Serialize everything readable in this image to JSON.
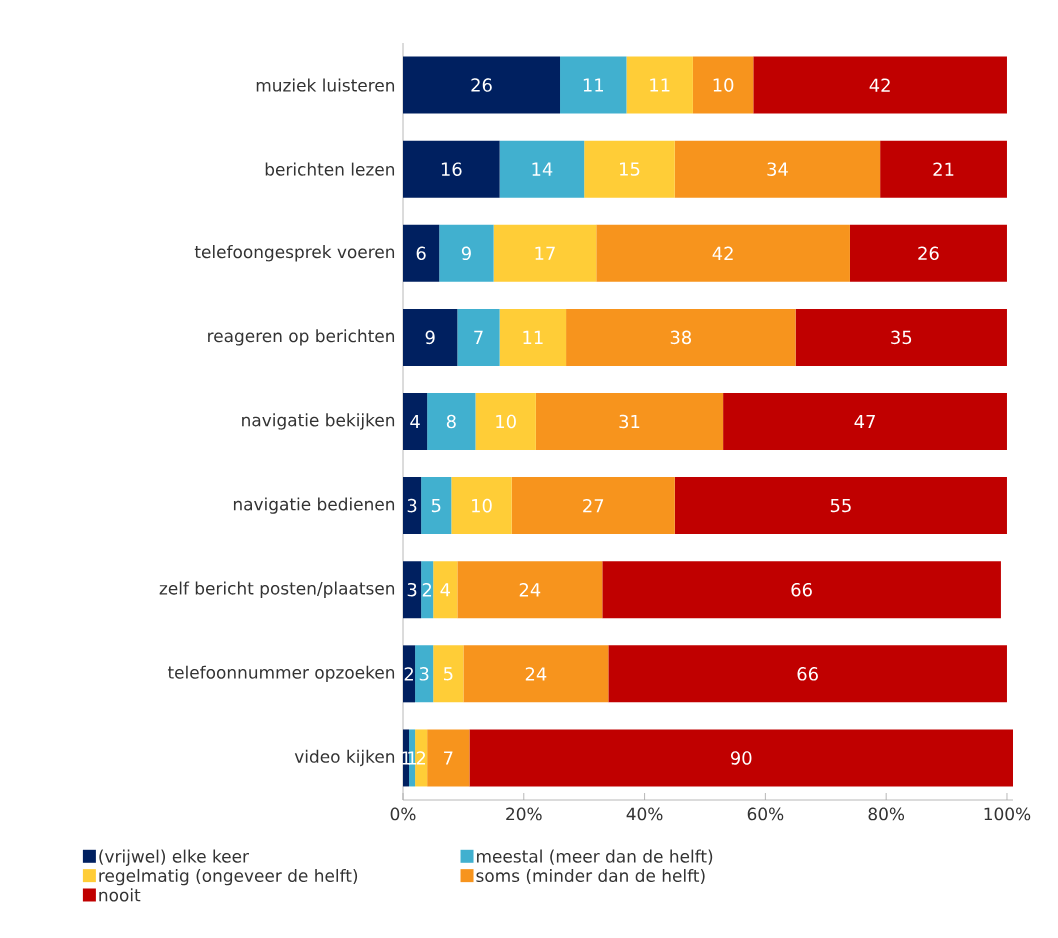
{
  "chart_data": {
    "type": "bar",
    "orientation": "horizontal",
    "stacked": true,
    "data_labels": true,
    "legend": "bottom",
    "categories": [
      "muziek luisteren",
      "berichten lezen",
      "telefoongesprek voeren",
      "reageren op berichten",
      "navigatie bekijken",
      "navigatie bedienen",
      "zelf bericht posten/plaatsen",
      "telefoonnummer opzoeken",
      "video kijken"
    ],
    "xlim": [
      0,
      101
    ],
    "xticks": [
      {
        "value": 0,
        "label": "0%"
      },
      {
        "value": 20,
        "label": "20%"
      },
      {
        "value": 40,
        "label": "40%"
      },
      {
        "value": 60,
        "label": "60%"
      },
      {
        "value": 80,
        "label": "80%"
      },
      {
        "value": 100,
        "label": "100%"
      }
    ],
    "series": [
      {
        "name": "(vrijwel) elke keer",
        "color": "#002060",
        "values": [
          26,
          16,
          6,
          9,
          4,
          3,
          3,
          2,
          1
        ]
      },
      {
        "name": "meestal (meer dan de helft)",
        "color": "#41b0cf",
        "values": [
          11,
          14,
          9,
          7,
          8,
          5,
          2,
          3,
          1
        ]
      },
      {
        "name": "regelmatig (ongeveer de helft)",
        "color": "#ffcd37",
        "values": [
          11,
          15,
          17,
          11,
          10,
          10,
          4,
          5,
          2
        ]
      },
      {
        "name": "soms (minder dan de helft)",
        "color": "#f7941d",
        "values": [
          10,
          34,
          42,
          38,
          31,
          27,
          24,
          24,
          7
        ]
      },
      {
        "name": "nooit",
        "color": "#c00000",
        "values": [
          42,
          21,
          26,
          35,
          47,
          55,
          66,
          66,
          90
        ]
      }
    ]
  }
}
